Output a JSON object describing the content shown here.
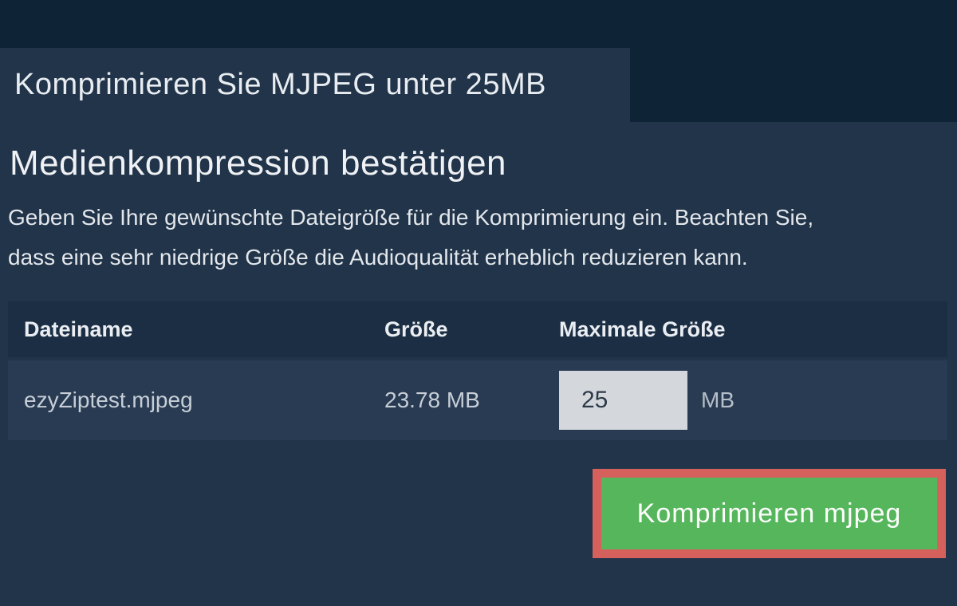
{
  "header": {
    "title": "Komprimieren Sie MJPEG unter 25MB"
  },
  "main": {
    "heading": "Medienkompression bestätigen",
    "description_line1": "Geben Sie Ihre gewünschte Dateigröße für die Komprimierung ein. Beachten Sie,",
    "description_line2": "dass eine sehr niedrige Größe die Audioqualität erheblich reduzieren kann."
  },
  "table": {
    "headers": {
      "filename": "Dateiname",
      "size": "Größe",
      "max_size": "Maximale Größe"
    },
    "row": {
      "filename": "ezyZiptest.mjpeg",
      "size": "23.78 MB",
      "max_size_value": "25",
      "unit": "MB"
    }
  },
  "button": {
    "label": "Komprimieren mjpeg"
  },
  "colors": {
    "top_bar": "#0f2337",
    "body_background": "#213449",
    "table_header_bg": "#1b2e44",
    "table_row_bg": "#283b52",
    "input_bg": "#d4d8dd",
    "button_green": "#56b65c",
    "button_highlight_red": "#d5605c"
  }
}
